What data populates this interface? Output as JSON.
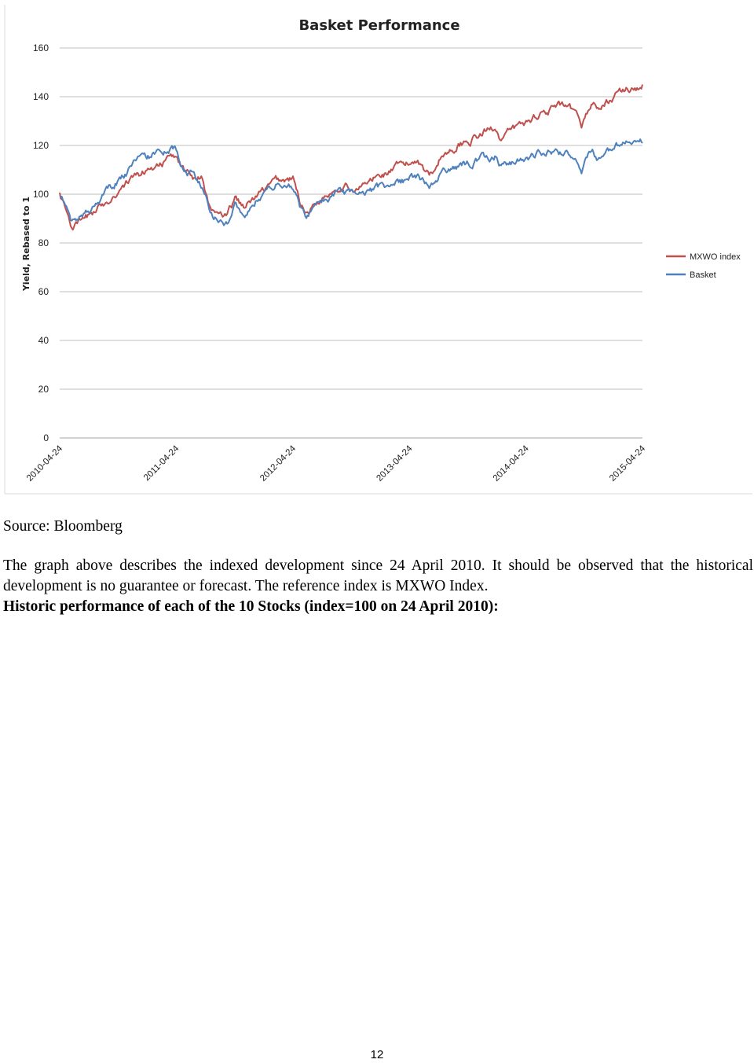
{
  "chart_data": {
    "type": "line",
    "title": "Basket Performance",
    "ylabel": "Yield, Rebased to 1",
    "xlabel": "",
    "ylim": [
      0,
      160
    ],
    "yticks": [
      0,
      20,
      40,
      60,
      80,
      100,
      120,
      140,
      160
    ],
    "xlim": [
      "2010-04-24",
      "2015-04-24"
    ],
    "xticks": [
      "2010-04-24",
      "2011-04-24",
      "2012-04-24",
      "2013-04-24",
      "2014-04-24",
      "2015-04-24"
    ],
    "grid": true,
    "legend_position": "right",
    "x": [
      "2010-04-24",
      "2010-06-01",
      "2010-07-01",
      "2010-09-01",
      "2010-11-01",
      "2011-01-01",
      "2011-03-01",
      "2011-04-24",
      "2011-05-15",
      "2011-06-15",
      "2011-07-15",
      "2011-08-05",
      "2011-08-20",
      "2011-10-01",
      "2011-10-25",
      "2011-11-25",
      "2012-01-01",
      "2012-03-01",
      "2012-04-24",
      "2012-05-15",
      "2012-06-05",
      "2012-07-15",
      "2012-09-15",
      "2012-11-15",
      "2013-01-01",
      "2013-03-01",
      "2013-04-24",
      "2013-05-20",
      "2013-06-25",
      "2013-08-01",
      "2013-10-01",
      "2013-12-01",
      "2014-01-20",
      "2014-02-05",
      "2014-04-24",
      "2014-06-15",
      "2014-08-05",
      "2014-09-15",
      "2014-10-15",
      "2014-11-15",
      "2014-12-15",
      "2015-02-01",
      "2015-04-24"
    ],
    "series": [
      {
        "name": "MXWO index",
        "color": "#c0504d",
        "values": [
          100,
          87,
          88,
          95,
          103,
          108,
          113,
          115,
          110,
          107,
          108,
          95,
          93,
          90,
          97,
          95,
          99,
          105,
          106,
          97,
          93,
          98,
          104,
          102,
          106,
          110,
          112,
          115,
          108,
          116,
          121,
          124,
          128,
          123,
          129,
          134,
          136,
          133,
          128,
          137,
          135,
          141,
          145
        ]
      },
      {
        "name": "Basket",
        "color": "#4f81bd",
        "values": [
          100,
          89,
          91,
          98,
          107,
          114,
          117,
          118,
          111,
          108,
          103,
          95,
          92,
          88,
          96,
          93,
          98,
          104,
          103,
          95,
          92,
          96,
          100,
          99,
          101,
          104,
          106,
          107,
          102,
          108,
          112,
          114,
          116,
          112,
          115,
          117,
          117,
          116,
          110,
          117,
          114,
          119,
          121
        ]
      }
    ]
  },
  "source_text": "Source: Bloomberg",
  "description": "The graph above describes the indexed development since 24 April 2010. It should be observed that the historical development is no guarantee or forecast. The reference index is MXWO Index.",
  "stocks_heading": "Historic performance of each of the 10 Stocks (index=100 on 24 April 2010):",
  "page_number": "12"
}
